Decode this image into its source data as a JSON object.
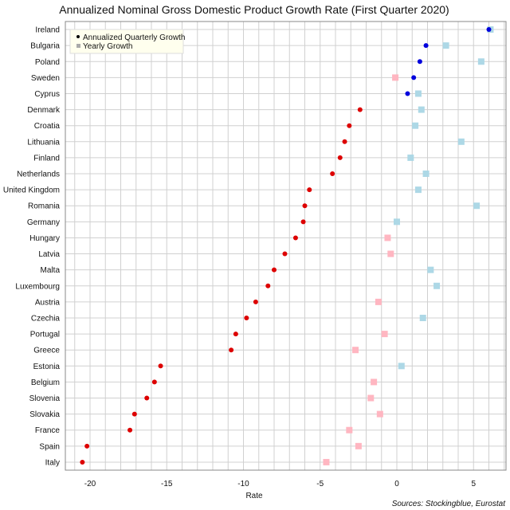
{
  "chart_data": {
    "type": "scatter",
    "title": "Annualized Nominal Gross Domestic Product Growth Rate (First Quarter 2020)",
    "xlabel": "Rate",
    "ylabel": "",
    "source": "Sources: Stockingblue, Eurostat",
    "xlim": [
      -21,
      7
    ],
    "xticks": [
      -20,
      -15,
      -10,
      -5,
      0,
      5
    ],
    "grid": true,
    "legend_position": "top-left",
    "categories": [
      "Ireland",
      "Bulgaria",
      "Poland",
      "Sweden",
      "Cyprus",
      "Denmark",
      "Croatia",
      "Lithuania",
      "Finland",
      "Netherlands",
      "United Kingdom",
      "Romania",
      "Germany",
      "Hungary",
      "Latvia",
      "Malta",
      "Luxembourg",
      "Austria",
      "Czechia",
      "Portugal",
      "Greece",
      "Estonia",
      "Belgium",
      "Slovenia",
      "Slovakia",
      "France",
      "Spain",
      "Italy"
    ],
    "series": [
      {
        "name": "Annualized Quarterly Growth",
        "marker": "circle",
        "positive_color": "#0000dd",
        "negative_color": "#dd0000",
        "values": [
          6.0,
          1.9,
          1.5,
          1.1,
          0.7,
          -2.4,
          -3.1,
          -3.4,
          -3.7,
          -4.2,
          -5.7,
          -6.0,
          -6.1,
          -6.6,
          -7.3,
          -8.0,
          -8.4,
          -9.2,
          -9.8,
          -10.5,
          -10.8,
          -15.4,
          -15.8,
          -16.3,
          -17.1,
          -17.4,
          -20.2,
          -20.5
        ]
      },
      {
        "name": "Yearly Growth",
        "marker": "square",
        "positive_color": "#add8e6",
        "negative_color": "#ffb6c1",
        "values": [
          6.1,
          3.2,
          5.5,
          -0.1,
          1.4,
          1.6,
          1.2,
          4.2,
          0.9,
          1.9,
          1.4,
          5.2,
          0.0,
          -0.6,
          -0.4,
          2.2,
          2.6,
          -1.2,
          1.7,
          -0.8,
          -2.7,
          0.3,
          -1.5,
          -1.7,
          -1.1,
          -3.1,
          -2.5,
          -4.6
        ]
      }
    ]
  }
}
